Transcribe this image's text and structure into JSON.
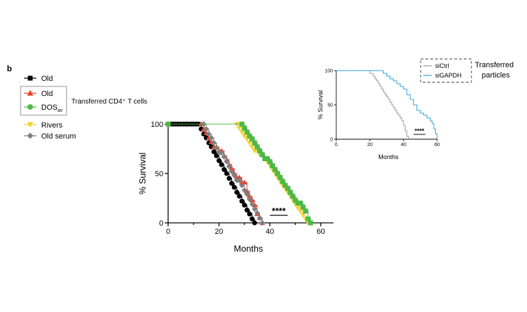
{
  "panel_label": "b",
  "legend_main": {
    "entries": [
      {
        "label": "Old",
        "color": "#000000",
        "marker": "square"
      },
      {
        "label": "Old",
        "color": "#e8412c",
        "marker": "triangle-up"
      },
      {
        "label": "DOS",
        "sub": "av",
        "color": "#4db848",
        "marker": "circle"
      },
      {
        "label": "Rivers",
        "color": "#f2d233",
        "marker": "triangle-down"
      },
      {
        "label": "Old serum",
        "color": "#7f7f7f",
        "marker": "diamond"
      }
    ],
    "group_caption": "Transferred CD4⁺ T cells"
  },
  "legend_inset": {
    "entries": [
      {
        "label": "siCtrl",
        "color": "#9a9a9a"
      },
      {
        "label": "siGAPDH",
        "color": "#2b9fd8"
      }
    ],
    "caption_line1": "Transferred",
    "caption_line2": "particles"
  },
  "chart_data": [
    {
      "type": "line",
      "subtype": "kaplan-meier",
      "xlabel": "Months",
      "ylabel": "% Survival",
      "xlim": [
        0,
        65
      ],
      "ylim": [
        0,
        100
      ],
      "xticks": [
        0,
        20,
        40,
        60
      ],
      "yticks": [
        0,
        50,
        100
      ],
      "grid": false,
      "significance": "****",
      "significance_x": [
        40,
        47
      ],
      "series": [
        {
          "name": "Old",
          "color": "#000000",
          "marker": "circle",
          "x": [
            0,
            1,
            2,
            3,
            4,
            5,
            6,
            7,
            8,
            9,
            10,
            11,
            12,
            13,
            14,
            15,
            16,
            17,
            18,
            19,
            20,
            21,
            22,
            23,
            24,
            25,
            26,
            27,
            28,
            29,
            30,
            31,
            32,
            33,
            34
          ],
          "y": [
            100,
            100,
            100,
            100,
            100,
            100,
            100,
            100,
            100,
            100,
            100,
            100,
            100,
            95,
            90,
            86,
            81,
            77,
            72,
            68,
            63,
            59,
            54,
            50,
            45,
            40,
            36,
            31,
            27,
            22,
            18,
            13,
            9,
            4,
            0
          ]
        },
        {
          "name": "Old",
          "color": "#e8412c",
          "marker": "triangle-up",
          "x": [
            0,
            13,
            14,
            15,
            16,
            17,
            18,
            19,
            20,
            21,
            22,
            23,
            24,
            25,
            26,
            27,
            28,
            29,
            30,
            31,
            32,
            33,
            34,
            35,
            36,
            37
          ],
          "y": [
            100,
            100,
            95,
            91,
            86,
            82,
            77,
            77,
            73,
            73,
            68,
            64,
            59,
            55,
            50,
            46,
            46,
            41,
            41,
            32,
            27,
            23,
            18,
            9,
            5,
            0
          ]
        },
        {
          "name": "Rivers",
          "color": "#f2d233",
          "marker": "triangle-down",
          "x": [
            0,
            27,
            28,
            29,
            30,
            31,
            32,
            33,
            34,
            35,
            36,
            37,
            38,
            39,
            40,
            41,
            42,
            43,
            44,
            45,
            46,
            47,
            48,
            49,
            50,
            51,
            52,
            53,
            54,
            55,
            56
          ],
          "y": [
            100,
            100,
            96,
            92,
            88,
            85,
            81,
            77,
            73,
            73,
            69,
            69,
            65,
            62,
            58,
            54,
            50,
            46,
            42,
            38,
            35,
            31,
            27,
            23,
            19,
            15,
            12,
            8,
            4,
            0,
            0
          ]
        },
        {
          "name": "Old serum",
          "color": "#7f7f7f",
          "marker": "diamond",
          "x": [
            0,
            14,
            15,
            16,
            17,
            18,
            19,
            20,
            21,
            22,
            23,
            24,
            25,
            26,
            27,
            28,
            29,
            30,
            31,
            32,
            33,
            34,
            35,
            36,
            37
          ],
          "y": [
            100,
            100,
            95,
            90,
            86,
            81,
            76,
            71,
            71,
            67,
            62,
            57,
            52,
            48,
            43,
            43,
            38,
            33,
            29,
            24,
            19,
            14,
            10,
            5,
            0
          ]
        },
        {
          "name": "DOS",
          "color": "#4db848",
          "marker": "square",
          "x": [
            0,
            29,
            30,
            31,
            32,
            33,
            34,
            35,
            36,
            37,
            38,
            39,
            40,
            41,
            42,
            43,
            44,
            45,
            46,
            47,
            48,
            49,
            50,
            51,
            52,
            53,
            54,
            55,
            56
          ],
          "y": [
            100,
            100,
            96,
            92,
            88,
            85,
            81,
            77,
            73,
            69,
            65,
            65,
            62,
            58,
            54,
            50,
            46,
            42,
            38,
            35,
            31,
            27,
            23,
            20,
            20,
            16,
            12,
            4,
            0
          ]
        }
      ]
    },
    {
      "type": "line",
      "subtype": "kaplan-meier",
      "xlabel": "Months",
      "ylabel": "% Survival",
      "xlim": [
        0,
        60
      ],
      "ylim": [
        0,
        100
      ],
      "xticks": [
        0,
        20,
        40,
        60
      ],
      "yticks": [
        0,
        50,
        100
      ],
      "grid": false,
      "significance": "****",
      "significance_x": [
        46,
        53
      ],
      "series": [
        {
          "name": "siCtrl",
          "color": "#9a9a9a",
          "x": [
            0,
            18,
            20,
            22,
            23,
            24,
            25,
            26,
            27,
            28,
            29,
            30,
            31,
            32,
            33,
            34,
            35,
            36,
            37,
            38,
            39,
            40,
            41,
            42,
            43
          ],
          "y": [
            100,
            100,
            96,
            92,
            88,
            85,
            81,
            77,
            73,
            69,
            65,
            62,
            58,
            54,
            50,
            46,
            42,
            38,
            35,
            31,
            27,
            20,
            12,
            4,
            0
          ]
        },
        {
          "name": "siGAPDH",
          "color": "#2b9fd8",
          "x": [
            0,
            18,
            26,
            28,
            30,
            32,
            34,
            36,
            38,
            40,
            42,
            44,
            46,
            48,
            50,
            52,
            54,
            56,
            57,
            58,
            59,
            60
          ],
          "y": [
            100,
            100,
            100,
            96,
            92,
            88,
            85,
            81,
            77,
            73,
            65,
            58,
            50,
            42,
            38,
            35,
            31,
            27,
            23,
            15,
            8,
            0
          ]
        }
      ]
    }
  ]
}
